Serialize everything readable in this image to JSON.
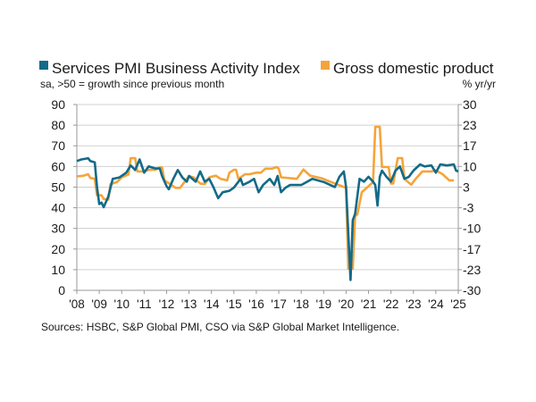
{
  "chart_data": {
    "type": "line",
    "legend_placement": "top",
    "grid": true,
    "left_axis": {
      "label": "sa, >50 = growth since previous month",
      "range": [
        0,
        90
      ],
      "ticks": [
        "0",
        "10",
        "20",
        "30",
        "40",
        "50",
        "60",
        "70",
        "80",
        "90"
      ]
    },
    "right_axis": {
      "label": "% yr/yr",
      "range": [
        -30,
        30
      ],
      "ticks": [
        "-30",
        "-23",
        "-17",
        "-10",
        "-3",
        "3",
        "10",
        "17",
        "23",
        "30"
      ]
    },
    "x_axis": {
      "range": [
        2008,
        2025
      ],
      "ticks": [
        "'08",
        "'09",
        "'10",
        "'11",
        "'12",
        "'13",
        "'14",
        "'15",
        "'16",
        "'17",
        "'18",
        "'19",
        "'20",
        "'21",
        "'22",
        "'23",
        "'24",
        "'25"
      ]
    },
    "series": [
      {
        "name": "Services PMI Business Activity Index",
        "axis": "left",
        "color": "#136a88",
        "x": [
          2008.0,
          2008.2,
          2008.4,
          2008.5,
          2008.6,
          2008.8,
          2008.9,
          2009.0,
          2009.1,
          2009.2,
          2009.4,
          2009.6,
          2009.9,
          2010.2,
          2010.4,
          2010.6,
          2010.8,
          2011.0,
          2011.2,
          2011.5,
          2011.7,
          2011.8,
          2012.0,
          2012.1,
          2012.3,
          2012.5,
          2012.7,
          2012.9,
          2013.0,
          2013.3,
          2013.5,
          2013.7,
          2013.9,
          2014.1,
          2014.3,
          2014.5,
          2014.8,
          2015.0,
          2015.3,
          2015.4,
          2015.7,
          2015.9,
          2016.1,
          2016.3,
          2016.6,
          2016.8,
          2016.95,
          2017.1,
          2017.3,
          2017.5,
          2018.0,
          2018.5,
          2019.0,
          2019.5,
          2019.7,
          2019.9,
          2020.0,
          2020.2,
          2020.3,
          2020.4,
          2020.6,
          2020.8,
          2021.0,
          2021.2,
          2021.3,
          2021.4,
          2021.5,
          2021.6,
          2021.8,
          2022.0,
          2022.2,
          2022.4,
          2022.6,
          2022.8,
          2023.0,
          2023.3,
          2023.5,
          2023.8,
          2024.0,
          2024.2,
          2024.5,
          2024.8,
          2024.9,
          2025.0
        ],
        "values": [
          62.6,
          63.4,
          63.8,
          64,
          62.6,
          62,
          50,
          41.8,
          42.5,
          40.3,
          45.4,
          54,
          54.7,
          57,
          60.5,
          58.3,
          63.4,
          57,
          60,
          59,
          59,
          55.4,
          50.4,
          49,
          54,
          58.3,
          54.7,
          52.6,
          55.4,
          52.6,
          57.6,
          52.6,
          54,
          49.7,
          44.6,
          47.5,
          48.2,
          49.7,
          54,
          51,
          52.6,
          54,
          47.5,
          51,
          54,
          51,
          55.4,
          47.5,
          49.7,
          51,
          51,
          54,
          52.5,
          50,
          55,
          57.6,
          50,
          5,
          34,
          37,
          54,
          52.6,
          55,
          52.6,
          51,
          41,
          55,
          58,
          55,
          52.6,
          58,
          60,
          54,
          55,
          58,
          61,
          60,
          60.5,
          57,
          61,
          60.5,
          61,
          58,
          57.6
        ]
      },
      {
        "name": "Gross domestic product",
        "axis": "right",
        "color": "#f5a43a",
        "x": [
          2008.0,
          2008.3,
          2008.5,
          2008.6,
          2008.8,
          2008.9,
          2009.1,
          2009.2,
          2009.4,
          2009.5,
          2009.8,
          2010.0,
          2010.3,
          2010.4,
          2010.6,
          2010.7,
          2011.0,
          2011.2,
          2011.5,
          2011.7,
          2011.8,
          2011.9,
          2012.2,
          2012.4,
          2012.6,
          2012.8,
          2013.0,
          2013.2,
          2013.5,
          2013.7,
          2013.9,
          2014.2,
          2014.4,
          2014.7,
          2014.8,
          2015.0,
          2015.1,
          2015.2,
          2015.5,
          2015.7,
          2016.0,
          2016.2,
          2016.4,
          2016.7,
          2016.9,
          2017.0,
          2017.1,
          2017.8,
          2018.1,
          2018.4,
          2018.9,
          2019.5,
          2020.0,
          2020.1,
          2020.3,
          2020.4,
          2020.5,
          2020.7,
          2021.0,
          2021.2,
          2021.3,
          2021.5,
          2021.6,
          2021.9,
          2022.0,
          2022.1,
          2022.3,
          2022.5,
          2022.6,
          2022.9,
          2023.1,
          2023.4,
          2023.8,
          2024.0,
          2024.3,
          2024.6,
          2024.8
        ],
        "values": [
          6.8,
          7,
          7.5,
          6.3,
          6,
          0.7,
          0.7,
          -0.5,
          -0.7,
          4.3,
          5,
          6.5,
          7.4,
          12.7,
          12.7,
          8.4,
          8.4,
          8.9,
          8.9,
          9.7,
          9.7,
          5.5,
          4.1,
          3.1,
          3.1,
          5,
          6.9,
          6.5,
          4.5,
          4.3,
          6.5,
          7,
          6,
          5.5,
          8,
          8.9,
          8.9,
          6,
          7.5,
          7.5,
          8,
          8,
          9.3,
          9.3,
          9.8,
          9.3,
          6.5,
          6,
          9,
          7,
          6.2,
          4.5,
          3.1,
          -23,
          -23,
          -6,
          -5.5,
          1.7,
          3.6,
          5,
          22.8,
          22.8,
          9.8,
          9.8,
          4.5,
          4.5,
          12.7,
          12.7,
          6,
          4.1,
          6,
          8.4,
          8.4,
          8.7,
          7.5,
          5.5,
          5.5
        ]
      }
    ],
    "source": "Sources: HSBC, S&P Global PMI, CSO via S&P Global Market Intelligence."
  }
}
